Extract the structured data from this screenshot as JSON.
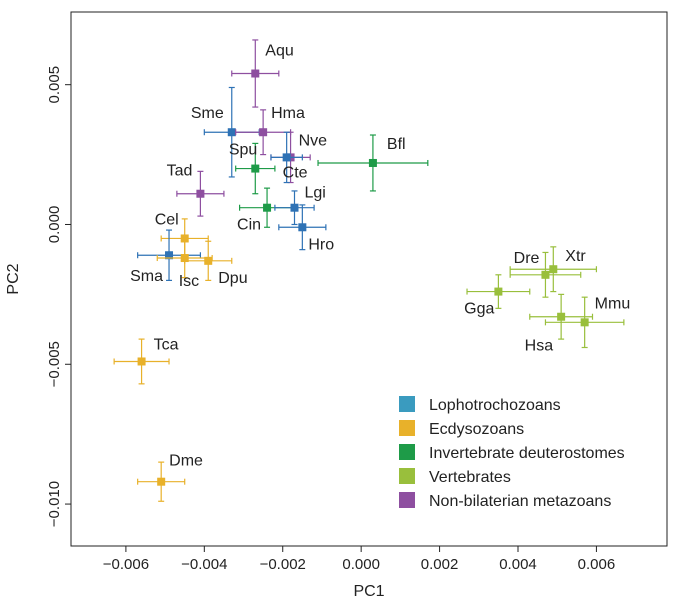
{
  "chart_data": {
    "type": "scatter",
    "xlabel": "PC1",
    "ylabel": "PC2",
    "xlim": [
      -0.0074,
      0.0078
    ],
    "ylim": [
      -0.0115,
      0.0076
    ],
    "xticks": [
      -0.006,
      -0.004,
      -0.002,
      0.0,
      0.002,
      0.004,
      0.006
    ],
    "xtick_labels": [
      "−0.006",
      "−0.004",
      "−0.002",
      "0.000",
      "0.002",
      "0.004",
      "0.006"
    ],
    "yticks": [
      -0.01,
      -0.005,
      0.0,
      0.005
    ],
    "ytick_labels": [
      "−0.010",
      "−0.005",
      "0.000",
      "0.005"
    ],
    "grid": false,
    "legend_position": "bottom-right",
    "groups": [
      {
        "name": "Lophotrochozoans",
        "color": "#3a9bbf",
        "marker_color": "#2e72b5"
      },
      {
        "name": "Ecdysozoans",
        "color": "#e8b12a",
        "marker_color": "#e8b12a"
      },
      {
        "name": "Invertebrate deuterostomes",
        "color": "#1e9b48",
        "marker_color": "#1e9b48"
      },
      {
        "name": "Vertebrates",
        "color": "#99bf3c",
        "marker_color": "#99bf3c"
      },
      {
        "name": "Non-bilaterian metazoans",
        "color": "#8e4fa0",
        "marker_color": "#8e4fa0"
      }
    ],
    "points": [
      {
        "label": "Aqu",
        "group": 4,
        "x": -0.0027,
        "y": 0.0054,
        "xerr": 0.0006,
        "yerr": 0.0012
      },
      {
        "label": "Sme",
        "group": 0,
        "x": -0.0033,
        "y": 0.0033,
        "xerr": 0.0007,
        "yerr": 0.0016
      },
      {
        "label": "Hma",
        "group": 4,
        "x": -0.0025,
        "y": 0.0033,
        "xerr": 0.0007,
        "yerr": 0.0008
      },
      {
        "label": "Nve",
        "group": 4,
        "x": -0.0018,
        "y": 0.0024,
        "xerr": 0.0005,
        "yerr": 0.0009
      },
      {
        "label": "Spu",
        "group": 2,
        "x": -0.0027,
        "y": 0.002,
        "xerr": 0.0005,
        "yerr": 0.0009
      },
      {
        "label": "Cte",
        "group": 0,
        "x": -0.0019,
        "y": 0.0024,
        "xerr": 0.0004,
        "yerr": 0.0009
      },
      {
        "label": "Bfl",
        "group": 2,
        "x": 0.0003,
        "y": 0.0022,
        "xerr": 0.0014,
        "yerr": 0.001
      },
      {
        "label": "Tad",
        "group": 4,
        "x": -0.0041,
        "y": 0.0011,
        "xerr": 0.0006,
        "yerr": 0.0008
      },
      {
        "label": "Cin",
        "group": 2,
        "x": -0.0024,
        "y": 0.0006,
        "xerr": 0.0007,
        "yerr": 0.0007
      },
      {
        "label": "Lgi",
        "group": 0,
        "x": -0.0017,
        "y": 0.0006,
        "xerr": 0.0005,
        "yerr": 0.0006
      },
      {
        "label": "Hro",
        "group": 0,
        "x": -0.0015,
        "y": -0.0001,
        "xerr": 0.0006,
        "yerr": 0.0008
      },
      {
        "label": "Cel",
        "group": 1,
        "x": -0.0045,
        "y": -0.0005,
        "xerr": 0.0006,
        "yerr": 0.0007
      },
      {
        "label": "Sma",
        "group": 0,
        "x": -0.0049,
        "y": -0.0011,
        "xerr": 0.0008,
        "yerr": 0.0009
      },
      {
        "label": "Isc",
        "group": 1,
        "x": -0.0045,
        "y": -0.0012,
        "xerr": 0.0007,
        "yerr": 0.0007
      },
      {
        "label": "Dpu",
        "group": 1,
        "x": -0.0039,
        "y": -0.0013,
        "xerr": 0.0006,
        "yerr": 0.0007
      },
      {
        "label": "Dre",
        "group": 3,
        "x": 0.0047,
        "y": -0.0018,
        "xerr": 0.0009,
        "yerr": 0.0008
      },
      {
        "label": "Xtr",
        "group": 3,
        "x": 0.0049,
        "y": -0.0016,
        "xerr": 0.0011,
        "yerr": 0.0008
      },
      {
        "label": "Gga",
        "group": 3,
        "x": 0.0035,
        "y": -0.0024,
        "xerr": 0.0008,
        "yerr": 0.0006
      },
      {
        "label": "Mmu",
        "group": 3,
        "x": 0.0057,
        "y": -0.0035,
        "xerr": 0.001,
        "yerr": 0.0009
      },
      {
        "label": "Hsa",
        "group": 3,
        "x": 0.0051,
        "y": -0.0033,
        "xerr": 0.0008,
        "yerr": 0.0008
      },
      {
        "label": "Tca",
        "group": 1,
        "x": -0.0056,
        "y": -0.0049,
        "xerr": 0.0007,
        "yerr": 0.0008
      },
      {
        "label": "Dme",
        "group": 1,
        "x": -0.0051,
        "y": -0.0092,
        "xerr": 0.0006,
        "yerr": 0.0007
      }
    ]
  }
}
